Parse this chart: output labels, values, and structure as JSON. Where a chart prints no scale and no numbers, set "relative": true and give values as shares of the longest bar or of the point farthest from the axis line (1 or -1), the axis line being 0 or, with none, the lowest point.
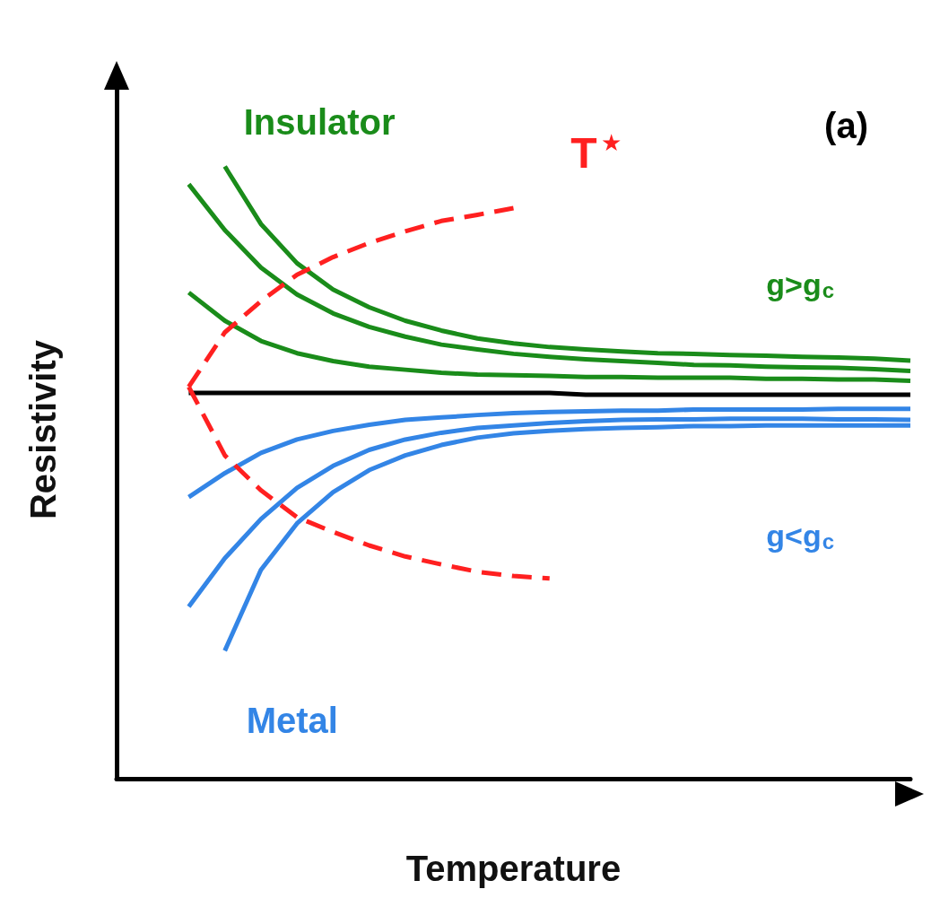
{
  "chart_data": {
    "type": "line",
    "relative": true,
    "xlabel": "Temperature",
    "ylabel": "Resistivity",
    "grid": false,
    "marker": "none",
    "line_style": "solid",
    "categories": [
      null,
      null,
      null,
      null,
      null,
      null,
      null,
      null,
      null,
      null,
      null,
      null,
      null,
      null,
      null,
      null,
      null,
      null,
      null,
      null,
      null,
      null,
      null
    ],
    "series": [
      {
        "name": "Insulator",
        "color": "#1a8c1a",
        "values": [
          null,
          null,
          null,
          1.0,
          0.906,
          0.842,
          0.799,
          0.77,
          0.748,
          0.732,
          0.719,
          0.711,
          0.705,
          0.701,
          0.698,
          0.695,
          0.694,
          0.692,
          0.691,
          0.689,
          0.688,
          0.686,
          0.683
        ]
      },
      {
        "color": "#1a8c1a",
        "values": [
          null,
          null,
          0.971,
          0.896,
          0.835,
          0.791,
          0.76,
          0.738,
          0.722,
          0.709,
          0.701,
          0.694,
          0.689,
          0.685,
          0.682,
          0.679,
          0.676,
          0.675,
          0.673,
          0.672,
          0.671,
          0.669,
          0.666
        ]
      },
      {
        "color": "#1a8c1a",
        "values": [
          null,
          null,
          0.794,
          0.748,
          0.715,
          0.695,
          0.682,
          0.673,
          0.668,
          0.663,
          0.66,
          0.659,
          0.658,
          0.656,
          0.656,
          0.655,
          0.655,
          0.655,
          0.653,
          0.653,
          0.652,
          0.652,
          0.65
        ]
      },
      {
        "color": "#000000",
        "values": [
          null,
          null,
          0.63,
          0.63,
          0.63,
          0.63,
          0.63,
          0.63,
          0.63,
          0.63,
          0.63,
          0.63,
          0.63,
          0.627,
          0.627,
          0.627,
          0.627,
          0.627,
          0.627,
          0.627,
          0.627,
          0.627,
          0.627
        ]
      },
      {
        "color": "#3385e6",
        "values": [
          null,
          null,
          0.46,
          0.499,
          0.532,
          0.554,
          0.568,
          0.578,
          0.586,
          0.59,
          0.594,
          0.597,
          0.599,
          0.6,
          0.601,
          0.601,
          0.603,
          0.603,
          0.603,
          0.603,
          0.604,
          0.604,
          0.604
        ]
      },
      {
        "color": "#3385e6",
        "values": [
          null,
          null,
          0.281,
          0.36,
          0.424,
          0.475,
          0.511,
          0.537,
          0.554,
          0.565,
          0.573,
          0.577,
          0.581,
          0.584,
          0.586,
          0.587,
          0.587,
          0.588,
          0.588,
          0.588,
          0.587,
          0.587,
          0.586
        ]
      },
      {
        "name": "Metal",
        "color": "#3385e6",
        "values": [
          null,
          null,
          null,
          0.209,
          0.341,
          0.417,
          0.468,
          0.504,
          0.528,
          0.545,
          0.557,
          0.564,
          0.568,
          0.571,
          0.573,
          0.574,
          0.576,
          0.576,
          0.577,
          0.577,
          0.577,
          0.577,
          0.577
        ]
      },
      {
        "name": "T$^{★}$",
        "color": "#ff2020",
        "line_style": "dashed",
        "values": [
          null,
          null,
          0.64,
          0.729,
          0.78,
          0.823,
          0.852,
          0.875,
          0.894,
          0.911,
          0.921,
          0.932,
          null,
          null,
          null,
          null,
          null,
          null,
          null,
          null,
          null,
          null,
          null
        ]
      },
      {
        "color": "#ff2020",
        "line_style": "dashed",
        "values": [
          null,
          null,
          0.64,
          0.528,
          0.471,
          0.427,
          0.403,
          0.381,
          0.363,
          0.35,
          0.338,
          0.331,
          0.327,
          null,
          null,
          null,
          null,
          null,
          null,
          null,
          null,
          null,
          null
        ]
      }
    ],
    "annotations": [
      "g>g$_{c}$",
      "g<g$_{c}$",
      "(a)"
    ]
  }
}
